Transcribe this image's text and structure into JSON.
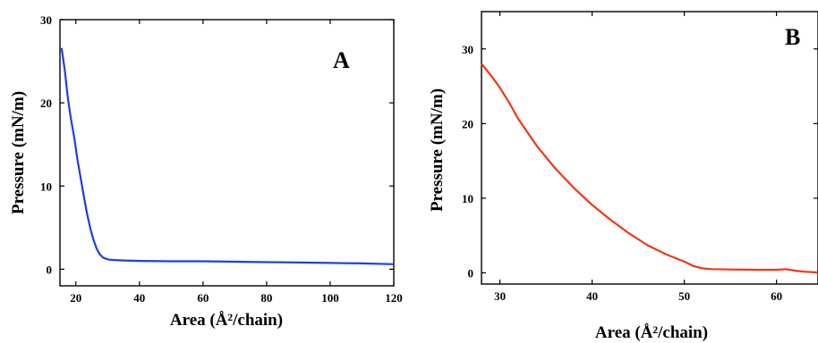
{
  "chart_data": [
    {
      "type": "line",
      "panel_label": "A",
      "xlabel": "Area (Å²/chain)",
      "ylabel": "Pressure (mN/m)",
      "xlim": [
        15,
        120
      ],
      "ylim": [
        -2,
        30
      ],
      "x_ticks": [
        20,
        40,
        60,
        80,
        100,
        120
      ],
      "y_ticks": [
        0,
        10,
        20,
        30
      ],
      "grid": false,
      "series": [
        {
          "color": "#1f3fdc",
          "x": [
            15.5,
            16.5,
            17.5,
            18.5,
            19.5,
            20.5,
            21.5,
            22.5,
            23.5,
            24.5,
            25.5,
            26.5,
            27.5,
            28.5,
            29.5,
            30.5,
            32,
            35,
            40,
            50,
            60,
            70,
            80,
            90,
            100,
            110,
            120
          ],
          "y": [
            26.6,
            24.0,
            20.5,
            18.0,
            15.8,
            13.2,
            11.0,
            8.8,
            6.7,
            5.0,
            3.6,
            2.5,
            1.8,
            1.4,
            1.25,
            1.15,
            1.1,
            1.05,
            1.0,
            0.95,
            0.95,
            0.9,
            0.85,
            0.8,
            0.75,
            0.7,
            0.6
          ]
        }
      ]
    },
    {
      "type": "line",
      "panel_label": "B",
      "xlabel": "Area (Å²/chain)",
      "ylabel": "Pressure (mN/m)",
      "xlim": [
        28,
        64.5
      ],
      "ylim": [
        -1.5,
        35
      ],
      "x_ticks": [
        30,
        40,
        50,
        60
      ],
      "y_ticks": [
        0,
        10,
        20,
        30
      ],
      "grid": false,
      "series": [
        {
          "color": "#ee3814",
          "x": [
            28,
            29,
            30,
            31,
            32,
            34,
            36,
            38,
            40,
            42,
            44,
            46,
            48,
            50,
            51,
            52,
            53,
            55,
            58,
            60,
            61,
            62,
            63,
            64.5
          ],
          "y": [
            28.0,
            26.5,
            24.8,
            22.8,
            20.6,
            17.0,
            14.0,
            11.4,
            9.1,
            7.1,
            5.3,
            3.7,
            2.5,
            1.5,
            0.9,
            0.6,
            0.5,
            0.45,
            0.4,
            0.4,
            0.5,
            0.3,
            0.15,
            0.05
          ]
        }
      ]
    }
  ]
}
